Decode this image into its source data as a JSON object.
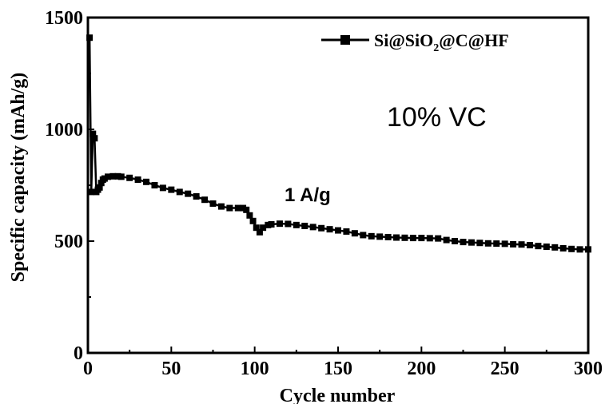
{
  "chart_data": {
    "type": "scatter",
    "title": "",
    "xlabel": "Cycle number",
    "ylabel": "Specific capacity (mAh/g)",
    "xlim": [
      0,
      300
    ],
    "ylim": [
      0,
      1500
    ],
    "xticks": [
      "0",
      "50",
      "100",
      "150",
      "200",
      "250",
      "300"
    ],
    "yticks": [
      "0",
      "500",
      "1000",
      "1500"
    ],
    "grid": false,
    "legend_position": "top-right",
    "legend": {
      "main": "Si@SiO",
      "subscript": "2",
      "tail": "@C@HF"
    },
    "annotations": {
      "electrolyte": "10% VC",
      "current": "1 A/g"
    },
    "series": [
      {
        "name": "Si@SiO2@C@HF",
        "color": "#000000",
        "marker": "square",
        "points": [
          [
            1,
            1410
          ],
          [
            2,
            720
          ],
          [
            3,
            980
          ],
          [
            4,
            960
          ],
          [
            5,
            720
          ],
          [
            6,
            730
          ],
          [
            7,
            740
          ],
          [
            8,
            760
          ],
          [
            9,
            775
          ],
          [
            10,
            780
          ],
          [
            12,
            788
          ],
          [
            15,
            790
          ],
          [
            18,
            790
          ],
          [
            20,
            788
          ],
          [
            25,
            783
          ],
          [
            30,
            775
          ],
          [
            35,
            765
          ],
          [
            40,
            750
          ],
          [
            45,
            738
          ],
          [
            50,
            730
          ],
          [
            55,
            720
          ],
          [
            60,
            712
          ],
          [
            65,
            700
          ],
          [
            70,
            685
          ],
          [
            75,
            668
          ],
          [
            80,
            655
          ],
          [
            85,
            648
          ],
          [
            90,
            648
          ],
          [
            93,
            648
          ],
          [
            95,
            640
          ],
          [
            97,
            615
          ],
          [
            99,
            590
          ],
          [
            101,
            560
          ],
          [
            103,
            540
          ],
          [
            105,
            560
          ],
          [
            108,
            572
          ],
          [
            110,
            575
          ],
          [
            115,
            578
          ],
          [
            120,
            577
          ],
          [
            125,
            572
          ],
          [
            130,
            568
          ],
          [
            135,
            563
          ],
          [
            140,
            558
          ],
          [
            145,
            553
          ],
          [
            150,
            548
          ],
          [
            155,
            543
          ],
          [
            160,
            535
          ],
          [
            165,
            527
          ],
          [
            170,
            522
          ],
          [
            175,
            520
          ],
          [
            180,
            518
          ],
          [
            185,
            516
          ],
          [
            190,
            515
          ],
          [
            195,
            514
          ],
          [
            200,
            514
          ],
          [
            205,
            513
          ],
          [
            210,
            512
          ],
          [
            215,
            505
          ],
          [
            220,
            500
          ],
          [
            225,
            496
          ],
          [
            230,
            494
          ],
          [
            235,
            492
          ],
          [
            240,
            490
          ],
          [
            245,
            489
          ],
          [
            250,
            488
          ],
          [
            255,
            486
          ],
          [
            260,
            485
          ],
          [
            265,
            482
          ],
          [
            270,
            478
          ],
          [
            275,
            475
          ],
          [
            280,
            472
          ],
          [
            285,
            468
          ],
          [
            290,
            465
          ],
          [
            295,
            463
          ],
          [
            300,
            463
          ]
        ]
      }
    ]
  }
}
